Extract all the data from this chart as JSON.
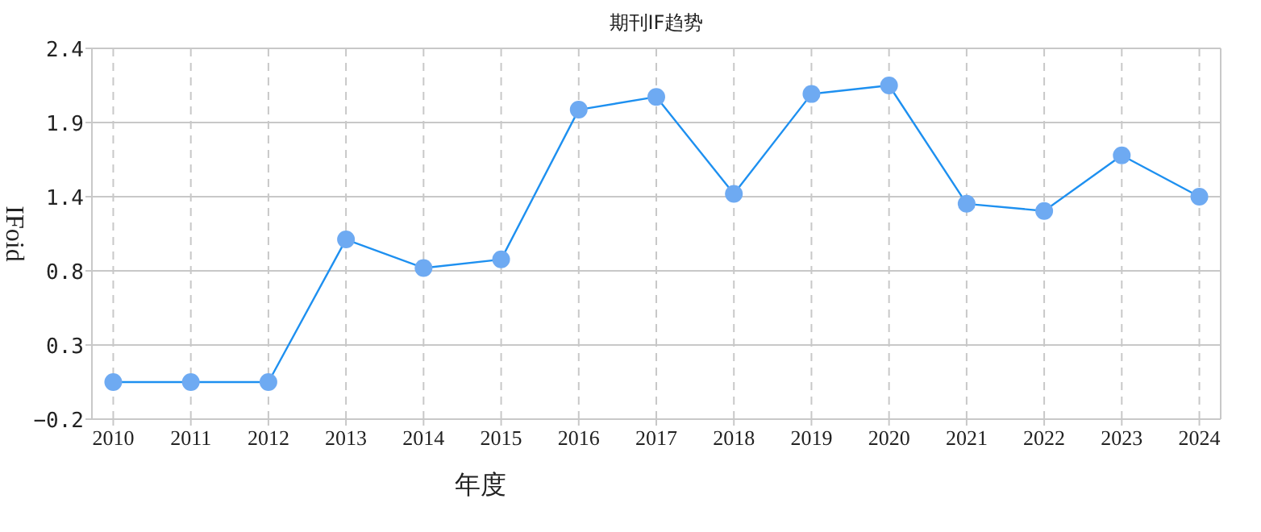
{
  "chart_data": {
    "type": "line",
    "title": "期刊IF趋势",
    "xlabel": "年度",
    "ylabel": "IFoid",
    "categories": [
      "2010",
      "2011",
      "2012",
      "2013",
      "2014",
      "2015",
      "2016",
      "2017",
      "2018",
      "2019",
      "2020",
      "2021",
      "2022",
      "2023",
      "2024"
    ],
    "series": [
      {
        "color": "#1e90f0",
        "colors": [
          "#6eaaf2",
          "#6eaaf2",
          "#6eaaf2",
          "#6eaaf2",
          "#6eaaf2",
          "#6eaaf2",
          "#6eaaf2",
          "#6eaaf2",
          "#6eaaf2",
          "#6eaaf2",
          "#6eaaf2",
          "#6eaaf2",
          "#6eaaf2",
          "#6eaaf2",
          "#6eaaf2"
        ],
        "values": [
          0.06,
          0.06,
          0.06,
          1.06,
          0.86,
          0.92,
          1.97,
          2.06,
          1.38,
          2.08,
          2.14,
          1.31,
          1.26,
          1.65,
          1.36
        ]
      }
    ],
    "ylim": [
      -0.2,
      2.4
    ],
    "yticks": [
      -0.2,
      {
        "value": 0.32,
        "label": "0.3"
      },
      {
        "value": 0.84,
        "label": "0.8"
      },
      {
        "value": 1.36,
        "label": "1.4"
      },
      {
        "value": 1.88,
        "label": "1.9"
      },
      2.4
    ],
    "grid": true,
    "marker": "circle",
    "line_style": "solid"
  }
}
